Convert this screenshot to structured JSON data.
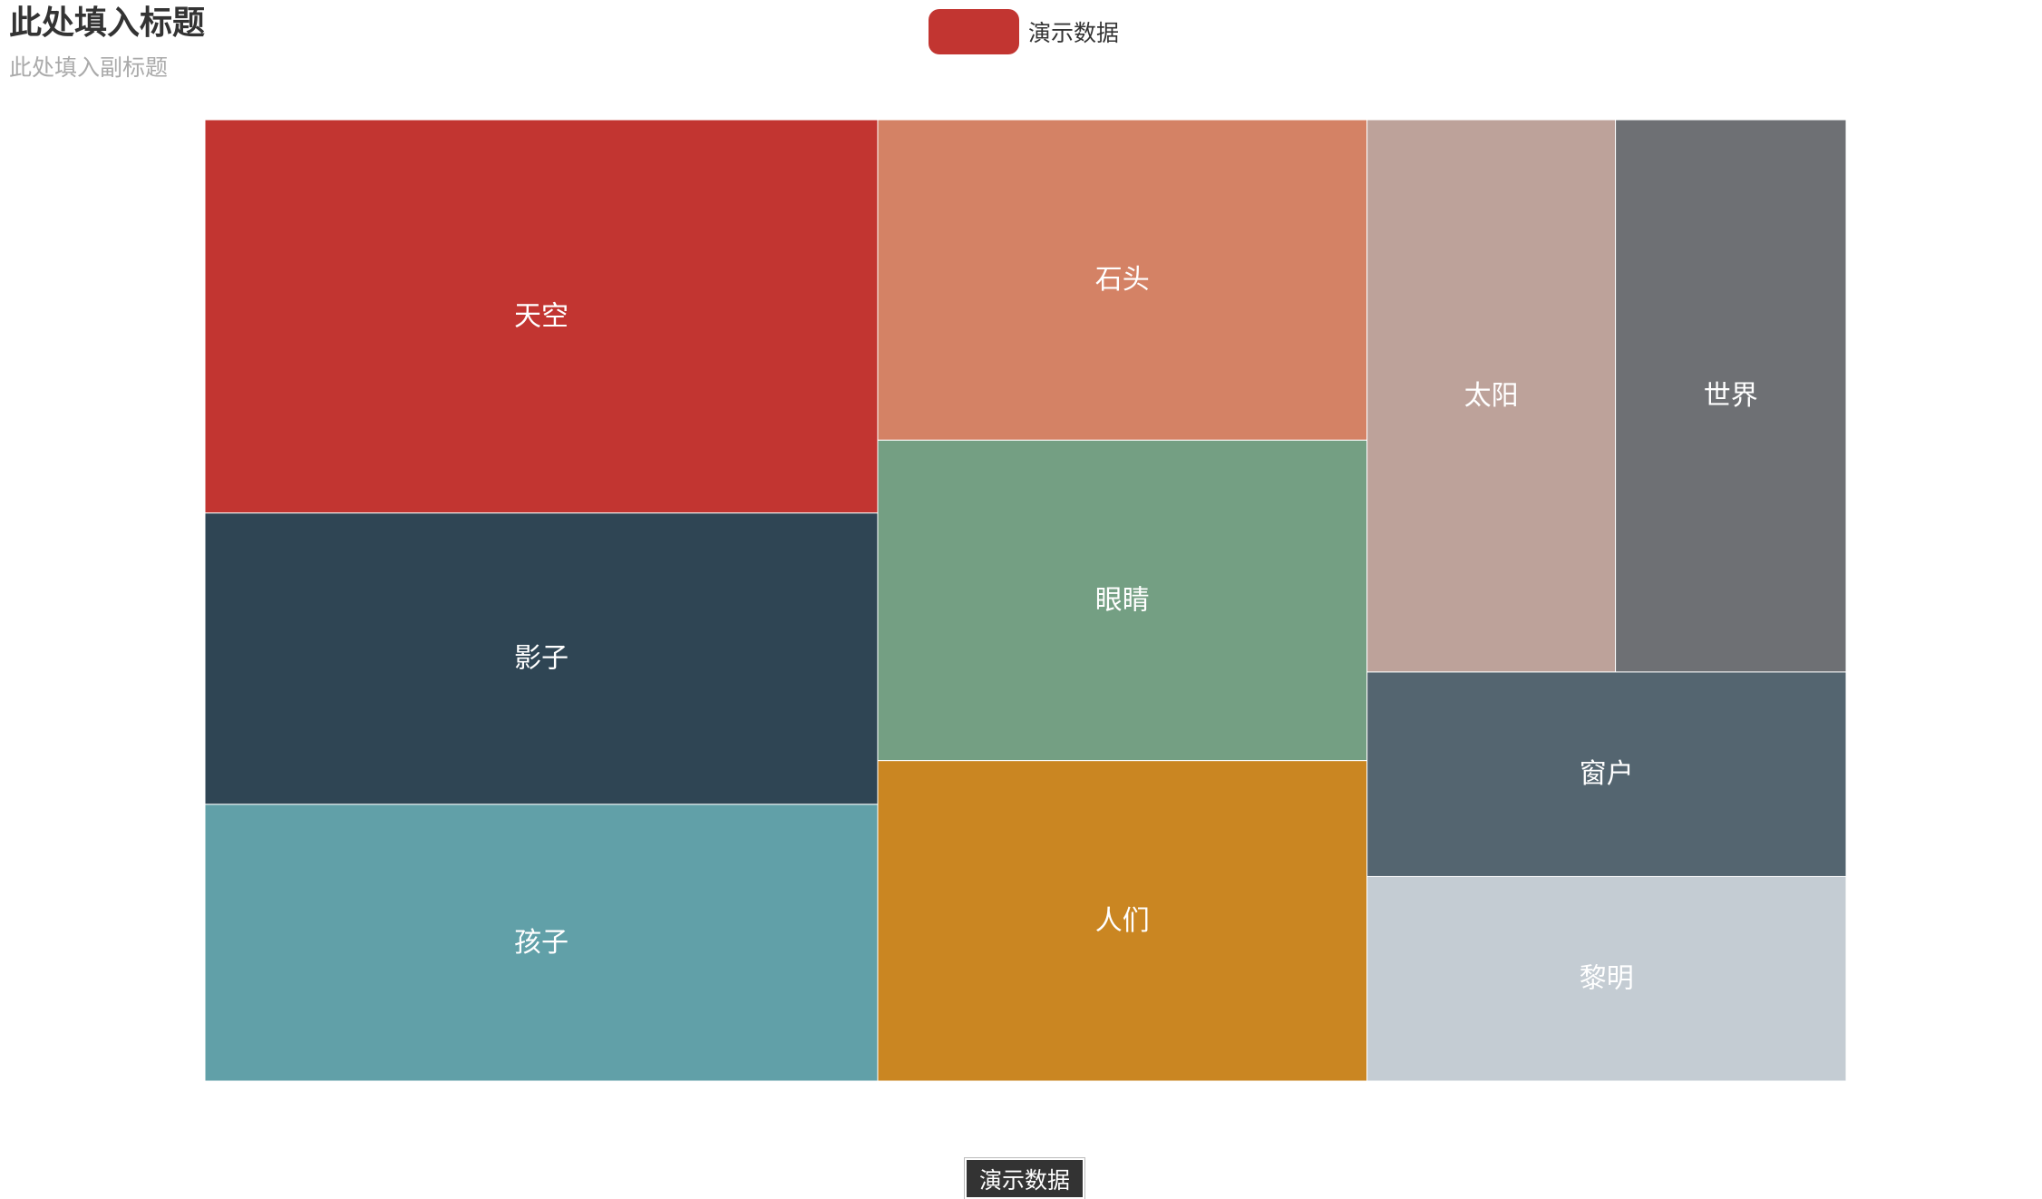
{
  "title": "此处填入标题",
  "subtitle": "此处填入副标题",
  "legend": {
    "label": "演示数据",
    "color": "#c23531"
  },
  "breadcrumb": {
    "label": "演示数据"
  },
  "chart_data": {
    "type": "treemap",
    "series_name": "演示数据",
    "items": [
      {
        "name": "天空",
        "value": 13.5,
        "color": "#c23531"
      },
      {
        "name": "影子",
        "value": 10.0,
        "color": "#2f4554"
      },
      {
        "name": "孩子",
        "value": 9.5,
        "color": "#61a0a8"
      },
      {
        "name": "石头",
        "value": 8.0,
        "color": "#d48265"
      },
      {
        "name": "眼睛",
        "value": 8.0,
        "color": "#749f83"
      },
      {
        "name": "人们",
        "value": 8.0,
        "color": "#ca8622"
      },
      {
        "name": "太阳",
        "value": 7.0,
        "color": "#bda29a"
      },
      {
        "name": "世界",
        "value": 6.5,
        "color": "#6e7074"
      },
      {
        "name": "窗户",
        "value": 5.0,
        "color": "#546570"
      },
      {
        "name": "黎明",
        "value": 5.0,
        "color": "#c4ccd3"
      }
    ]
  }
}
